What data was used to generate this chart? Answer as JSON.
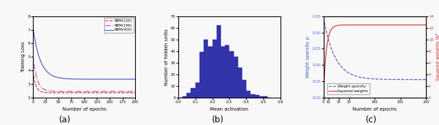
{
  "subplot_a": {
    "title": "(a)",
    "xlabel": "Number of epochs",
    "ylabel": "Training Loss",
    "xlim": [
      0,
      200
    ],
    "ylim": [
      2,
      8
    ],
    "yticks": [
      2,
      3,
      4,
      5,
      6,
      7,
      8
    ],
    "xticks": [
      0,
      25,
      50,
      75,
      100,
      125,
      150,
      175,
      200
    ],
    "lines": [
      {
        "label": "RBM(100)",
        "color": "#cc3333",
        "linestyle": "--",
        "start_val": 3.9,
        "end_val": 2.35,
        "decay": 0.18
      },
      {
        "label": "RBM(196)",
        "color": "#bb44bb",
        "linestyle": "-.",
        "start_val": 5.1,
        "end_val": 2.45,
        "decay": 0.13
      },
      {
        "label": "RBM(400)",
        "color": "#4455cc",
        "linestyle": "-",
        "start_val": 7.2,
        "end_val": 3.35,
        "decay": 0.07
      }
    ]
  },
  "subplot_b": {
    "title": "(b)",
    "xlabel": "Mean activation",
    "ylabel": "Number of hidden units",
    "xlim": [
      0.0,
      0.6
    ],
    "ylim": [
      0,
      70
    ],
    "bar_color": "#3333aa",
    "bin_edges": [
      0.0,
      0.025,
      0.05,
      0.075,
      0.1,
      0.125,
      0.15,
      0.175,
      0.2,
      0.225,
      0.25,
      0.275,
      0.3,
      0.325,
      0.35,
      0.375,
      0.4,
      0.425,
      0.45,
      0.475,
      0.5,
      0.525,
      0.55
    ],
    "bin_heights": [
      0,
      1,
      4,
      8,
      13,
      39,
      50,
      44,
      50,
      62,
      44,
      45,
      40,
      35,
      26,
      15,
      6,
      3,
      2,
      1,
      1,
      0
    ]
  },
  "subplot_c": {
    "title": "(c)",
    "xlabel": "Number of epochs",
    "ylabel_left": "Weight sparsity ρ",
    "ylabel_right": "Squared weights W²",
    "xlim": [
      0,
      200
    ],
    "xticks": [
      0,
      10,
      30,
      50,
      100,
      150,
      200
    ],
    "xtick_labels": [
      "0",
      "10",
      "30",
      "50",
      "100",
      "150",
      "200"
    ],
    "ylim_left": [
      0.1,
      0.35
    ],
    "ylim_right": [
      0,
      14
    ],
    "yticks_left": [
      0.1,
      0.15,
      0.2,
      0.25,
      0.3,
      0.35
    ],
    "yticks_right": [
      0,
      2,
      4,
      6,
      8,
      10,
      12,
      14
    ],
    "line_sparsity": {
      "label": "Weight sparsity",
      "color": "#4455cc",
      "linestyle": "--",
      "start_val": 0.345,
      "end_val": 0.155,
      "decay": 0.045
    },
    "line_squared": {
      "label": "Squared weights",
      "color": "#cc3333",
      "linestyle": "-",
      "start_val": 0.5,
      "end_val": 12.5,
      "rise": 0.18
    }
  },
  "bg_color": "#f8f8f8"
}
